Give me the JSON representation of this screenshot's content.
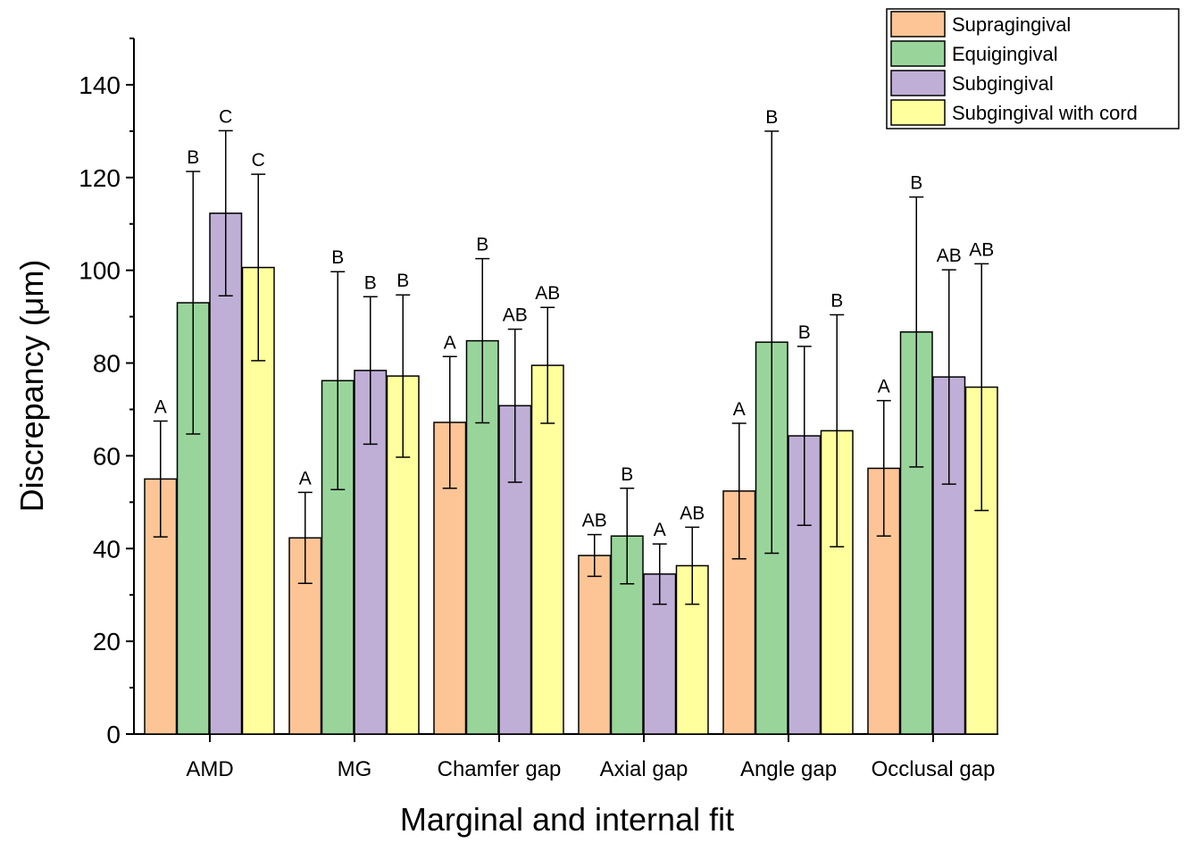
{
  "chart_data": {
    "type": "bar",
    "xlabel": "Marginal and internal fit",
    "ylabel": "Discrepancy (μm)",
    "ylim": [
      0,
      150
    ],
    "yticks": [
      0,
      20,
      40,
      60,
      80,
      100,
      120,
      140
    ],
    "grid": false,
    "legend_position": "top-right",
    "categories": [
      "AMD",
      "MG",
      "Chamfer gap",
      "Axial gap",
      "Angle gap",
      "Occlusal gap"
    ],
    "series": [
      {
        "name": "Supragingival",
        "color": "#FDC595",
        "values": [
          55,
          42.3,
          67.2,
          38.5,
          52.4,
          57.3
        ],
        "errors": [
          12.5,
          9.8,
          14.2,
          4.5,
          14.6,
          14.6
        ],
        "significance": [
          "A",
          "A",
          "A",
          "AB",
          "A",
          "A"
        ]
      },
      {
        "name": "Equigingival",
        "color": "#99D59B",
        "values": [
          93,
          76.2,
          84.8,
          42.7,
          84.5,
          86.7
        ],
        "errors": [
          28.3,
          23.5,
          17.7,
          10.3,
          45.5,
          29.1
        ],
        "significance": [
          "B",
          "B",
          "B",
          "B",
          "B",
          "B"
        ]
      },
      {
        "name": "Subgingival",
        "color": "#BFAFD6",
        "values": [
          112.3,
          78.4,
          70.8,
          34.5,
          64.3,
          77
        ],
        "errors": [
          17.8,
          15.9,
          16.5,
          6.5,
          19.3,
          23.1
        ],
        "significance": [
          "C",
          "B",
          "AB",
          "A",
          "B",
          "AB"
        ]
      },
      {
        "name": "Subgingival with cord",
        "color": "#FFFF9D",
        "values": [
          100.6,
          77.2,
          79.5,
          36.3,
          65.4,
          74.8
        ],
        "errors": [
          20.1,
          17.5,
          12.5,
          8.3,
          25,
          26.6
        ],
        "significance": [
          "C",
          "B",
          "AB",
          "AB",
          "B",
          "AB"
        ]
      }
    ]
  }
}
